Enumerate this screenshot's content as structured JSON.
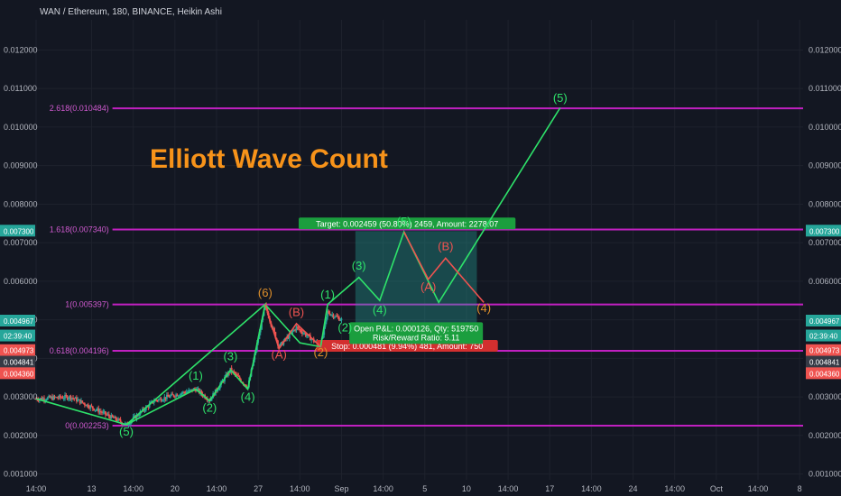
{
  "header": {
    "symbol_line": "WAN / Ethereum, 180, BINANCE, Heikin Ashi"
  },
  "annotation_title": "Elliott Wave Count",
  "colors": {
    "background": "#131722",
    "fib": "#c020c0",
    "wave_green": "#2ee26a",
    "wave_red": "#ef5350",
    "up": "#26a69a",
    "down": "#ef5350"
  },
  "chart_data": {
    "type": "candlestick",
    "title": "WAN / Ethereum, 180, BINANCE, Heikin Ashi",
    "ylim": [
      0.00085,
      0.01278
    ],
    "y_ticks": [
      "0.001000",
      "0.002000",
      "0.003000",
      "0.004000",
      "0.005000",
      "0.006000",
      "0.007000",
      "0.008000",
      "0.009000",
      "0.010000",
      "0.011000",
      "0.012000"
    ],
    "y_tick_values": [
      0.001,
      0.002,
      0.003,
      0.004,
      0.005,
      0.006,
      0.007,
      0.008,
      0.009,
      0.01,
      0.011,
      0.012
    ],
    "x_ticks": [
      "14:00",
      "13",
      "14:00",
      "20",
      "14:00",
      "27",
      "14:00",
      "Sep",
      "14:00",
      "5",
      "10",
      "14:00",
      "17",
      "14:00",
      "24",
      "14:00",
      "Oct",
      "14:00",
      "8"
    ],
    "x_tick_index": [
      0,
      16,
      28,
      40,
      52,
      64,
      76,
      88,
      100,
      112,
      124,
      136,
      148,
      160,
      172,
      184,
      196,
      208,
      220
    ],
    "x_max_index": 221,
    "fib_levels": [
      {
        "label": "2.618(0.010484)",
        "value": 0.010484
      },
      {
        "label": "1.618(0.007340)",
        "value": 0.00734
      },
      {
        "label": "1(0.005397)",
        "value": 0.005397
      },
      {
        "label": "0.618(0.004196)",
        "value": 0.004196
      },
      {
        "label": "0(0.002253)",
        "value": 0.002253
      }
    ],
    "price_tags": [
      {
        "label": "0.007300",
        "value": 0.0073,
        "color": "#26a69a"
      },
      {
        "label": "0.004967",
        "value": 0.004967,
        "color": "#26a69a"
      },
      {
        "label": "02:39:40",
        "value": 0.00458,
        "color": "#26a69a"
      },
      {
        "label": "0.004973",
        "value": 0.004202,
        "color": "#ef5350"
      },
      {
        "label": "0.004841",
        "value": 0.003902,
        "color": "#363a45"
      },
      {
        "label": "0.004360",
        "value": 0.003602,
        "color": "#ef5350"
      }
    ],
    "wave_paths": [
      {
        "color": "#2ee26a",
        "points": [
          [
            0,
            0.00295
          ],
          [
            26,
            0.00228
          ],
          [
            46,
            0.0032
          ],
          [
            50,
            0.0029
          ],
          [
            56,
            0.0037
          ],
          [
            61,
            0.0032
          ],
          [
            66,
            0.0054
          ],
          [
            26,
            0.00228
          ]
        ]
      },
      {
        "color": "#2ee26a",
        "points": [
          [
            66,
            0.0054
          ],
          [
            76,
            0.0044
          ],
          [
            82,
            0.0043
          ],
          [
            84,
            0.0054
          ],
          [
            93,
            0.0061
          ],
          [
            99,
            0.0055
          ],
          [
            106,
            0.00728
          ],
          [
            116,
            0.00545
          ],
          [
            151,
            0.0105
          ]
        ]
      },
      {
        "color": "#ef5350",
        "points": [
          [
            66,
            0.0054
          ],
          [
            70,
            0.00425
          ],
          [
            75,
            0.0049
          ],
          [
            82,
            0.0043
          ]
        ]
      },
      {
        "color": "#ef5350",
        "points": [
          [
            106,
            0.00728
          ],
          [
            113,
            0.00605
          ],
          [
            118,
            0.0066
          ],
          [
            129,
            0.00545
          ]
        ]
      }
    ],
    "wave_labels": [
      {
        "text": "(5)",
        "x": 26,
        "y": 0.002,
        "cls": "wave-g"
      },
      {
        "text": "(1)",
        "x": 46,
        "y": 0.00345,
        "cls": "wave-g"
      },
      {
        "text": "(2)",
        "x": 50,
        "y": 0.00262,
        "cls": "wave-g"
      },
      {
        "text": "(3)",
        "x": 56,
        "y": 0.00395,
        "cls": "wave-g"
      },
      {
        "text": "(4)",
        "x": 61,
        "y": 0.0029,
        "cls": "wave-g"
      },
      {
        "text": "(6)",
        "x": 66,
        "y": 0.0056,
        "cls": "wave-o"
      },
      {
        "text": "(B)",
        "x": 75,
        "y": 0.0051,
        "cls": "wave-r"
      },
      {
        "text": "(A)",
        "x": 70,
        "y": 0.004,
        "cls": "wave-r"
      },
      {
        "text": "(2)",
        "x": 82,
        "y": 0.00405,
        "cls": "wave-o"
      },
      {
        "text": "(1)",
        "x": 84,
        "y": 0.00555,
        "cls": "wave-g"
      },
      {
        "text": "(2)",
        "x": 89,
        "y": 0.0047,
        "cls": "wave-g"
      },
      {
        "text": "(3)",
        "x": 93,
        "y": 0.0063,
        "cls": "wave-g"
      },
      {
        "text": "(4)",
        "x": 99,
        "y": 0.00515,
        "cls": "wave-g"
      },
      {
        "text": "(5)",
        "x": 106,
        "y": 0.00745,
        "cls": "wave-g"
      },
      {
        "text": "(B)",
        "x": 118,
        "y": 0.0068,
        "cls": "wave-r"
      },
      {
        "text": "(A)",
        "x": 113,
        "y": 0.00575,
        "cls": "wave-r"
      },
      {
        "text": "(4)",
        "x": 129,
        "y": 0.0052,
        "cls": "wave-o"
      },
      {
        "text": "(5)",
        "x": 151,
        "y": 0.01065,
        "cls": "wave-g"
      }
    ],
    "position_tool": {
      "target_label": "Target: 0.002459 (50.80%) 2459, Amount: 2278.07",
      "open_label": "Open P&L: 0.000126, Qty: 519750",
      "rr_label": "Risk/Reward Ratio: 5.11",
      "stop_label": "Stop: 0.000481 (9.94%) 481, Amount: 750",
      "x_start": 92,
      "x_end": 127,
      "entry": 0.00484,
      "target": 0.0073,
      "stop": 0.00436
    }
  }
}
